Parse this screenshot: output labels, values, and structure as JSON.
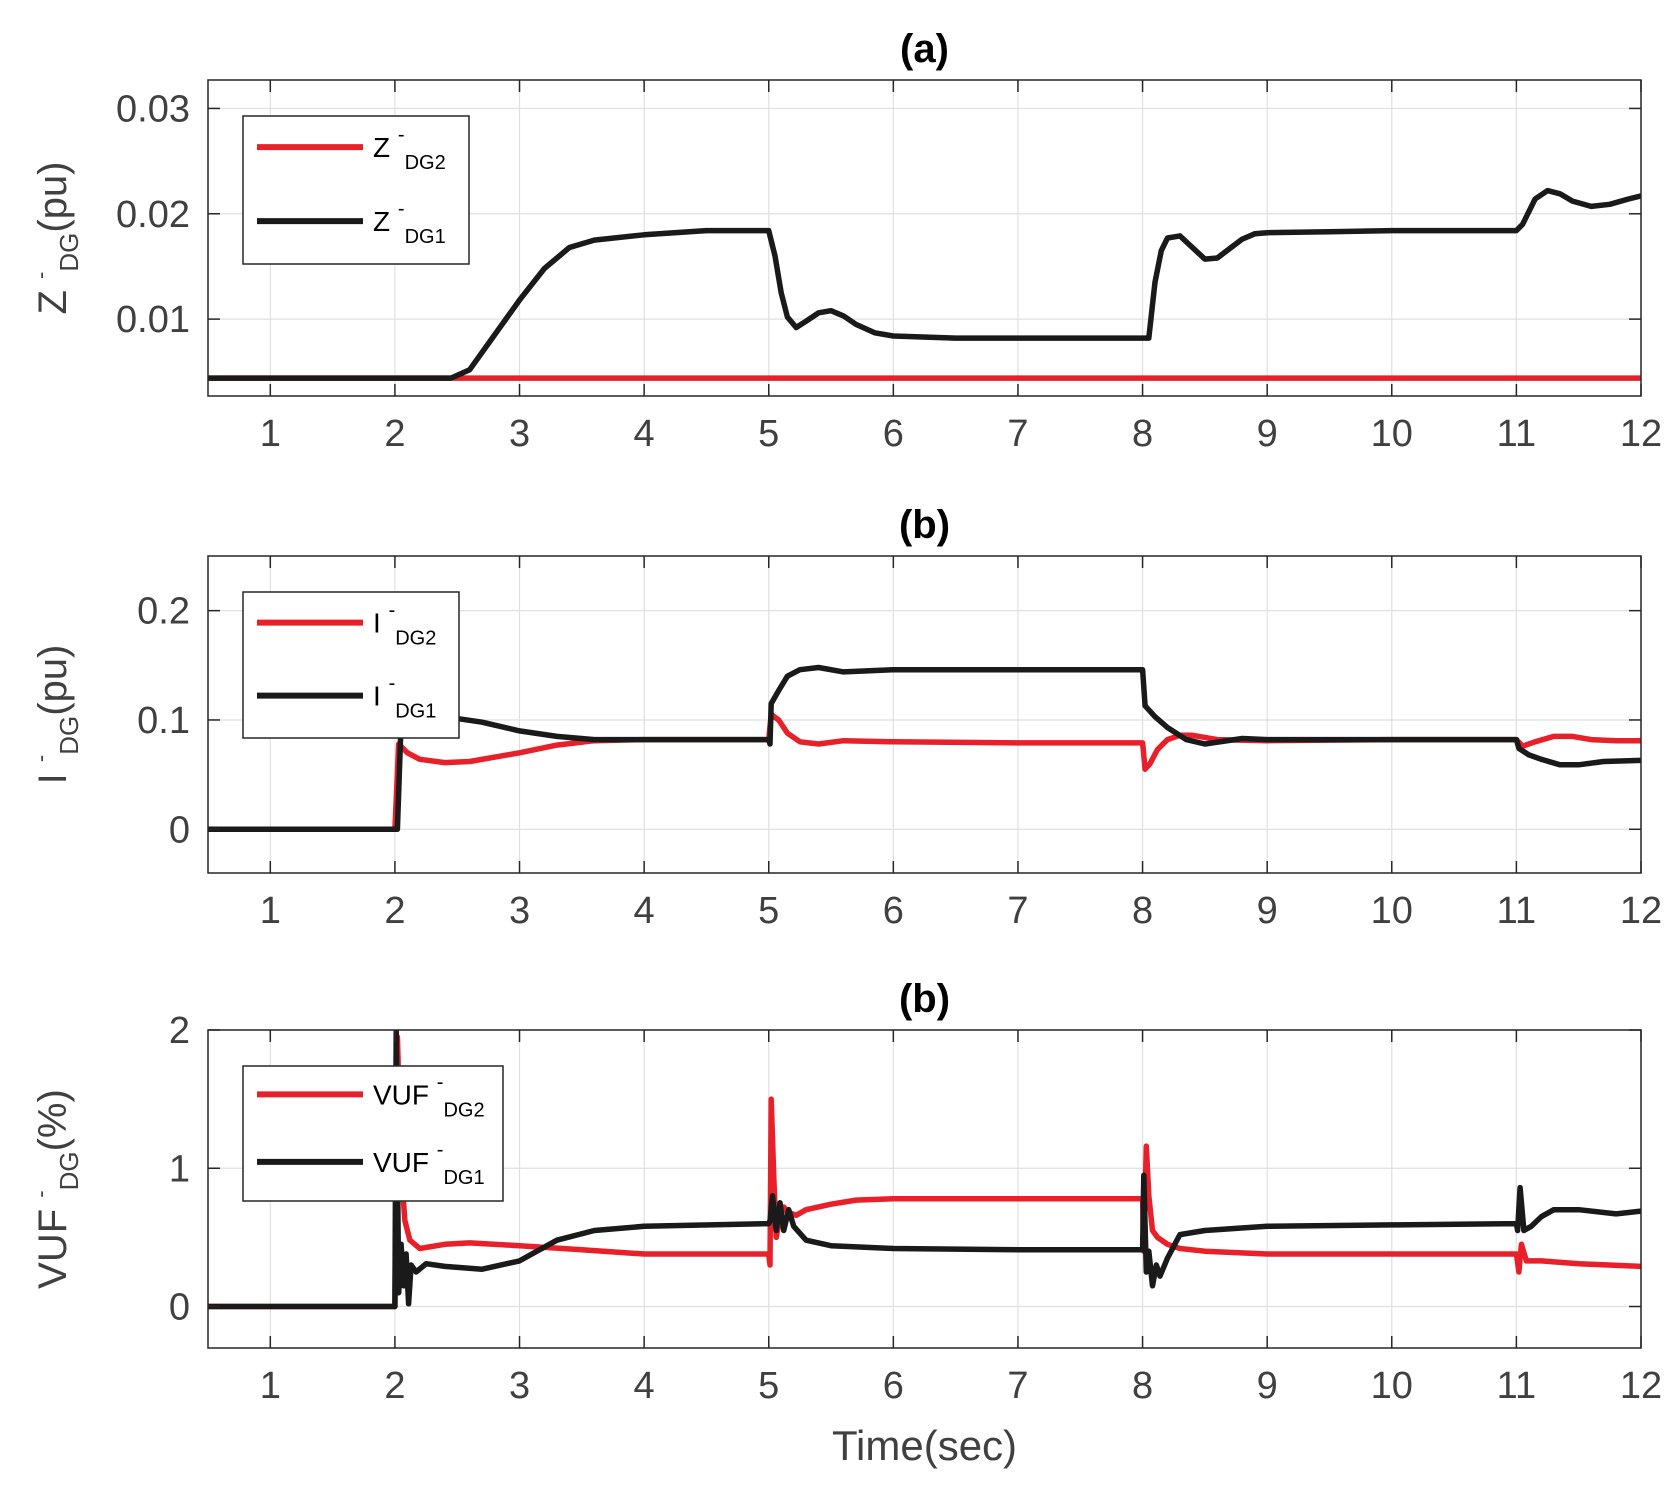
{
  "chart_data": [
    {
      "type": "line",
      "title": "(a)",
      "ylabel": {
        "base": "Z",
        "superscript": "-",
        "subscript": "DG",
        "suffix": "(pu)"
      },
      "xlabel": "",
      "xlim": [
        0.5,
        12
      ],
      "ylim": [
        0.0027,
        0.0327
      ],
      "xticks": [
        1,
        2,
        3,
        4,
        5,
        6,
        7,
        8,
        9,
        10,
        11,
        12
      ],
      "yticks": [
        0.01,
        0.02,
        0.03
      ],
      "ytick_labels": [
        "0.01",
        "0.02",
        "0.03"
      ],
      "grid": true,
      "legend_position": "top-left",
      "series": [
        {
          "name": "Z DG2",
          "legend": {
            "base": "Z",
            "superscript": "-",
            "subscript": "DG2"
          },
          "color": "#e8202a",
          "x": [
            0.5,
            12
          ],
          "y": [
            0.0044,
            0.0044
          ]
        },
        {
          "name": "Z DG1",
          "legend": {
            "base": "Z",
            "superscript": "-",
            "subscript": "DG1"
          },
          "color": "#1a1a1a",
          "x": [
            0.5,
            2.45,
            2.6,
            2.8,
            3.0,
            3.2,
            3.4,
            3.6,
            4.0,
            4.5,
            5.0,
            5.05,
            5.1,
            5.15,
            5.22,
            5.3,
            5.4,
            5.5,
            5.6,
            5.7,
            5.85,
            6.0,
            6.5,
            7.0,
            7.5,
            8.05,
            8.1,
            8.15,
            8.2,
            8.3,
            8.4,
            8.5,
            8.6,
            8.7,
            8.8,
            8.9,
            9.0,
            9.5,
            10.0,
            11.0,
            11.05,
            11.15,
            11.25,
            11.35,
            11.45,
            11.6,
            11.75,
            11.9,
            12.0
          ],
          "y": [
            0.0044,
            0.0044,
            0.0052,
            0.0085,
            0.0118,
            0.0148,
            0.0168,
            0.0175,
            0.018,
            0.0184,
            0.0184,
            0.016,
            0.0125,
            0.0102,
            0.0092,
            0.0098,
            0.0106,
            0.0108,
            0.0103,
            0.0095,
            0.0087,
            0.0084,
            0.0082,
            0.0082,
            0.0082,
            0.0082,
            0.0135,
            0.0165,
            0.0177,
            0.0179,
            0.0168,
            0.0157,
            0.0158,
            0.0167,
            0.0176,
            0.0181,
            0.0182,
            0.0183,
            0.0184,
            0.0184,
            0.019,
            0.0214,
            0.0222,
            0.0219,
            0.0212,
            0.0207,
            0.0209,
            0.0214,
            0.0217
          ]
        }
      ]
    },
    {
      "type": "line",
      "title": "(b)",
      "ylabel": {
        "base": "I",
        "superscript": "-",
        "subscript": "DG",
        "suffix": "(pu)"
      },
      "xlabel": "",
      "xlim": [
        0.5,
        12
      ],
      "ylim": [
        -0.04,
        0.25
      ],
      "xticks": [
        1,
        2,
        3,
        4,
        5,
        6,
        7,
        8,
        9,
        10,
        11,
        12
      ],
      "yticks": [
        0,
        0.1,
        0.2
      ],
      "ytick_labels": [
        "0",
        "0.1",
        "0.2"
      ],
      "grid": true,
      "legend_position": "top-left",
      "series": [
        {
          "name": "I DG2",
          "legend": {
            "base": "I",
            "superscript": "-",
            "subscript": "DG2"
          },
          "color": "#e8202a",
          "x": [
            0.5,
            2.0,
            2.03,
            2.1,
            2.2,
            2.4,
            2.6,
            3.0,
            3.3,
            3.6,
            4.0,
            5.0,
            5.02,
            5.08,
            5.15,
            5.25,
            5.4,
            5.6,
            6.0,
            7.0,
            8.0,
            8.02,
            8.06,
            8.12,
            8.2,
            8.3,
            8.4,
            8.6,
            9.0,
            10.0,
            11.0,
            11.05,
            11.15,
            11.3,
            11.45,
            11.6,
            11.8,
            12.0
          ],
          "y": [
            0,
            0,
            0.078,
            0.07,
            0.064,
            0.061,
            0.062,
            0.07,
            0.077,
            0.081,
            0.082,
            0.082,
            0.105,
            0.1,
            0.088,
            0.08,
            0.078,
            0.081,
            0.08,
            0.079,
            0.079,
            0.055,
            0.06,
            0.073,
            0.082,
            0.086,
            0.086,
            0.082,
            0.081,
            0.082,
            0.082,
            0.076,
            0.08,
            0.085,
            0.085,
            0.082,
            0.081,
            0.081
          ]
        },
        {
          "name": "I DG1",
          "legend": {
            "base": "I",
            "superscript": "-",
            "subscript": "DG1"
          },
          "color": "#1a1a1a",
          "x": [
            0.5,
            2.02,
            2.05,
            2.15,
            2.4,
            2.7,
            3.0,
            3.3,
            3.6,
            4.0,
            5.0,
            5.01,
            5.02,
            5.08,
            5.15,
            5.25,
            5.4,
            5.6,
            6.0,
            7.0,
            8.0,
            8.02,
            8.1,
            8.2,
            8.35,
            8.5,
            8.8,
            9.0,
            10.0,
            11.0,
            11.02,
            11.1,
            11.2,
            11.35,
            11.5,
            11.7,
            12.0
          ],
          "y": [
            0,
            0,
            0.098,
            0.104,
            0.103,
            0.098,
            0.09,
            0.085,
            0.082,
            0.082,
            0.082,
            0.078,
            0.115,
            0.127,
            0.14,
            0.146,
            0.148,
            0.144,
            0.146,
            0.146,
            0.146,
            0.113,
            0.103,
            0.093,
            0.082,
            0.078,
            0.083,
            0.082,
            0.082,
            0.082,
            0.074,
            0.068,
            0.064,
            0.059,
            0.059,
            0.062,
            0.063
          ]
        }
      ]
    },
    {
      "type": "line",
      "title": "(b)",
      "ylabel": {
        "base": "VUF",
        "superscript": "-",
        "subscript": "DG",
        "suffix": "(%)"
      },
      "xlabel": "Time(sec)",
      "xlim": [
        0.5,
        12
      ],
      "ylim": [
        -0.3,
        2
      ],
      "xticks": [
        1,
        2,
        3,
        4,
        5,
        6,
        7,
        8,
        9,
        10,
        11,
        12
      ],
      "yticks": [
        0,
        1,
        2
      ],
      "ytick_labels": [
        "0",
        "1",
        "2"
      ],
      "grid": true,
      "legend_position": "top-left",
      "series": [
        {
          "name": "VUF DG2",
          "legend": {
            "base": "VUF",
            "superscript": "-",
            "subscript": "DG2"
          },
          "color": "#e8202a",
          "x": [
            0.5,
            2.0,
            2.02,
            2.05,
            2.08,
            2.12,
            2.2,
            2.4,
            2.6,
            3.0,
            3.5,
            4.0,
            5.0,
            5.01,
            5.02,
            5.04,
            5.06,
            5.08,
            5.12,
            5.16,
            5.22,
            5.3,
            5.5,
            5.7,
            6.0,
            7.0,
            8.0,
            8.01,
            8.03,
            8.05,
            8.08,
            8.12,
            8.2,
            8.3,
            8.5,
            9.0,
            10.0,
            11.0,
            11.02,
            11.04,
            11.08,
            11.2,
            11.5,
            12.0
          ],
          "y": [
            0,
            0,
            1.95,
            1.0,
            0.62,
            0.48,
            0.42,
            0.45,
            0.46,
            0.44,
            0.41,
            0.38,
            0.38,
            0.3,
            1.5,
            0.95,
            0.5,
            0.6,
            0.72,
            0.68,
            0.66,
            0.7,
            0.74,
            0.77,
            0.78,
            0.78,
            0.78,
            0.4,
            1.16,
            0.8,
            0.55,
            0.5,
            0.45,
            0.42,
            0.4,
            0.38,
            0.38,
            0.38,
            0.25,
            0.45,
            0.33,
            0.33,
            0.31,
            0.29
          ]
        },
        {
          "name": "VUF DG1",
          "legend": {
            "base": "VUF",
            "superscript": "-",
            "subscript": "DG1"
          },
          "color": "#1a1a1a",
          "x": [
            0.5,
            2.0,
            2.01,
            2.03,
            2.05,
            2.07,
            2.09,
            2.11,
            2.13,
            2.17,
            2.25,
            2.4,
            2.7,
            3.0,
            3.3,
            3.6,
            4.0,
            5.0,
            5.01,
            5.03,
            5.06,
            5.09,
            5.12,
            5.16,
            5.2,
            5.3,
            5.5,
            6.0,
            7.0,
            8.0,
            8.01,
            8.03,
            8.05,
            8.08,
            8.11,
            8.14,
            8.2,
            8.3,
            8.5,
            9.0,
            10.0,
            11.0,
            11.01,
            11.03,
            11.06,
            11.12,
            11.2,
            11.3,
            11.5,
            11.8,
            12.0
          ],
          "y": [
            0,
            0,
            2.0,
            0.1,
            0.45,
            0.15,
            0.38,
            0.02,
            0.3,
            0.25,
            0.31,
            0.29,
            0.27,
            0.33,
            0.48,
            0.55,
            0.58,
            0.6,
            0.62,
            0.8,
            0.55,
            0.75,
            0.55,
            0.7,
            0.58,
            0.48,
            0.44,
            0.42,
            0.41,
            0.41,
            0.95,
            0.25,
            0.4,
            0.15,
            0.3,
            0.22,
            0.35,
            0.52,
            0.55,
            0.58,
            0.59,
            0.6,
            0.55,
            0.86,
            0.55,
            0.58,
            0.65,
            0.7,
            0.7,
            0.67,
            0.69
          ]
        }
      ]
    }
  ]
}
